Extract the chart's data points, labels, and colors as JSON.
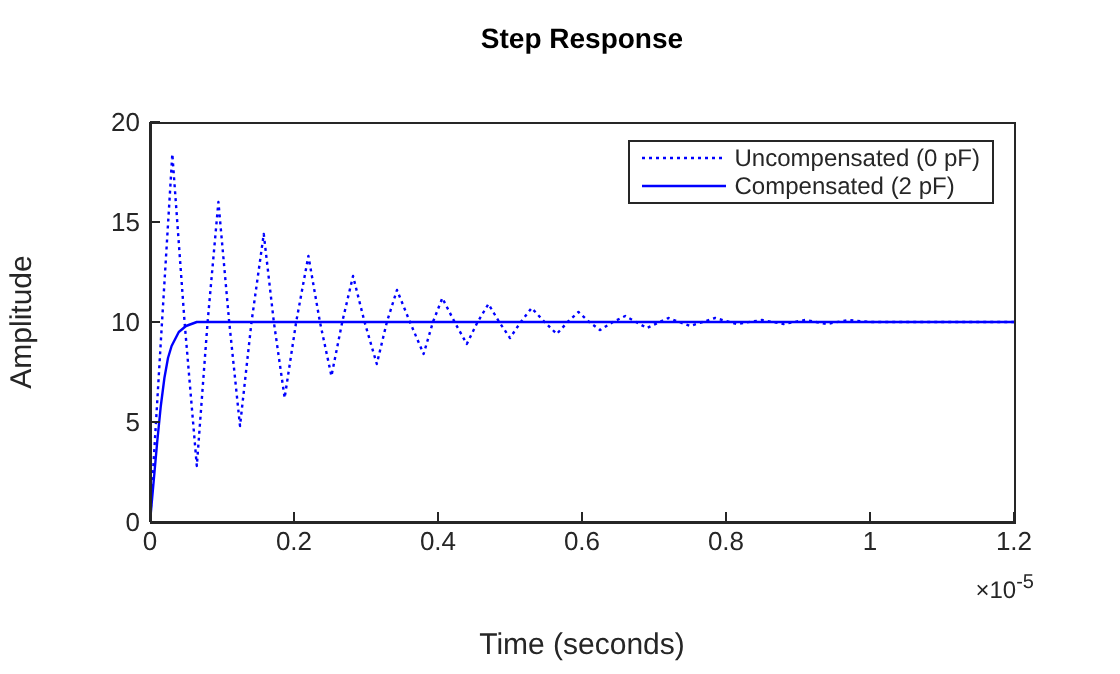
{
  "chart_data": {
    "type": "line",
    "title": "Step Response",
    "xlabel": "Time (seconds)",
    "ylabel": "Amplitude",
    "annotations": [
      "×10$^{-5}$"
    ],
    "series": [
      {
        "name": "Uncompensated (0 pF)",
        "color": "#0000ff",
        "line_style": "dotted",
        "x": [
          0,
          0.015,
          0.031,
          0.048,
          0.065,
          0.08,
          0.095,
          0.11,
          0.125,
          0.141,
          0.158,
          0.172,
          0.187,
          0.203,
          0.22,
          0.236,
          0.252,
          0.267,
          0.282,
          0.298,
          0.315,
          0.329,
          0.343,
          0.361,
          0.38,
          0.393,
          0.406,
          0.423,
          0.44,
          0.455,
          0.47,
          0.485,
          0.5,
          0.515,
          0.53,
          0.548,
          0.565,
          0.58,
          0.595,
          0.61,
          0.625,
          0.643,
          0.66,
          0.675,
          0.69,
          0.72,
          0.75,
          0.785,
          0.815,
          0.85,
          0.88,
          0.91,
          0.94,
          0.97,
          1.0,
          1.05,
          1.1,
          1.15,
          1.2
        ],
        "values": [
          0,
          9,
          18.4,
          10,
          2.8,
          10,
          16.0,
          10,
          4.8,
          10,
          14.4,
          10,
          6.2,
          10,
          13.3,
          10,
          7.3,
          10,
          12.3,
          10,
          7.9,
          10,
          11.6,
          10,
          8.4,
          10,
          11.2,
          10,
          8.9,
          10,
          10.9,
          10,
          9.2,
          10,
          10.7,
          10,
          9.4,
          10,
          10.5,
          10,
          9.6,
          10,
          10.3,
          10,
          9.7,
          10.2,
          9.8,
          10.2,
          9.9,
          10.1,
          9.9,
          10.1,
          9.9,
          10.1,
          10,
          10,
          10,
          10,
          10
        ]
      },
      {
        "name": "Compensated (2 pF)",
        "color": "#0000ff",
        "line_style": "solid",
        "x": [
          0,
          0.005,
          0.01,
          0.015,
          0.02,
          0.025,
          0.03,
          0.04,
          0.05,
          0.065,
          0.1,
          1.2
        ],
        "values": [
          0,
          2,
          4,
          5.8,
          7.2,
          8.2,
          8.8,
          9.5,
          9.8,
          10,
          10,
          10
        ]
      }
    ],
    "xlim": [
      0,
      1.2
    ],
    "xticks": [
      0,
      0.2,
      0.4,
      0.6,
      0.8,
      1,
      1.2
    ],
    "ylim": [
      0,
      20
    ],
    "yticks": [
      0,
      5,
      10,
      15,
      20
    ],
    "legend": "top right"
  }
}
